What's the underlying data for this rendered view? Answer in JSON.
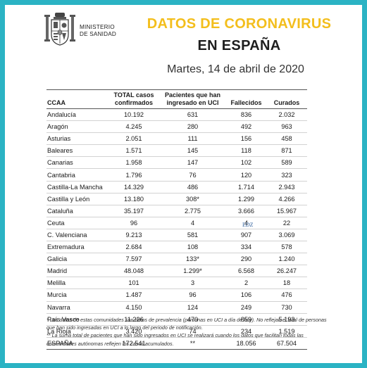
{
  "header": {
    "ministry_line1": "MINISTERIO",
    "ministry_line2": "DE SANIDAD",
    "title_line1": "DATOS DE CORONAVIRUS",
    "title_line2": "EN ESPAÑA",
    "date": "Martes, 14 de abril de 2020"
  },
  "table": {
    "columns": [
      "CCAA",
      "TOTAL casos confirmados",
      "Pacientes que han ingresado en UCI",
      "Fallecidos",
      "Curados"
    ],
    "rows": [
      [
        "Andalucía",
        "10.192",
        "631",
        "836",
        "2.032"
      ],
      [
        "Aragón",
        "4.245",
        "280",
        "492",
        "963"
      ],
      [
        "Asturias",
        "2.051",
        "111",
        "156",
        "458"
      ],
      [
        "Baleares",
        "1.571",
        "145",
        "118",
        "871"
      ],
      [
        "Canarias",
        "1.958",
        "147",
        "102",
        "589"
      ],
      [
        "Cantabria",
        "1.796",
        "76",
        "120",
        "323"
      ],
      [
        "Castilla-La Mancha",
        "14.329",
        "486",
        "1.714",
        "2.943"
      ],
      [
        "Castilla y León",
        "13.180",
        "308*",
        "1.299",
        "4.266"
      ],
      [
        "Cataluña",
        "35.197",
        "2.775",
        "3.666",
        "15.967"
      ],
      [
        "Ceuta",
        "96",
        "4",
        "4",
        "22"
      ],
      [
        "C. Valenciana",
        "9.213",
        "581",
        "907",
        "3.069"
      ],
      [
        "Extremadura",
        "2.684",
        "108",
        "334",
        "578"
      ],
      [
        "Galicia",
        "7.597",
        "133*",
        "290",
        "1.240"
      ],
      [
        "Madrid",
        "48.048",
        "1.299*",
        "6.568",
        "26.247"
      ],
      [
        "Melilla",
        "101",
        "3",
        "2",
        "18"
      ],
      [
        "Murcia",
        "1.487",
        "96",
        "106",
        "476"
      ],
      [
        "Navarra",
        "4.150",
        "124",
        "249",
        "730"
      ],
      [
        "País Vasco",
        "11.226",
        "470",
        "859",
        "5.193"
      ],
      [
        "La Rioja",
        "3.420",
        "74",
        "234",
        "1.519"
      ]
    ],
    "total": [
      "ESPAÑA",
      "172.541",
      "**",
      "18.056",
      "67.504"
    ]
  },
  "notes": {
    "note1": "* Los datos de estas comunidades son datos de prevalencia (personas en UCI a día de hoy). No reflejan el total de personas que han sido ingresadas en UCI a lo largo del periodo de notificación.",
    "note2": "** La suma total de pacientes que han sido ingresados en UCI se realizará cuando los datos que facilitan todas las comunidades autónomas reflejen los casos acumulados."
  },
  "watermark": "EDZ",
  "colors": {
    "border": "#2bb3c4",
    "title_accent": "#f3be1c"
  }
}
